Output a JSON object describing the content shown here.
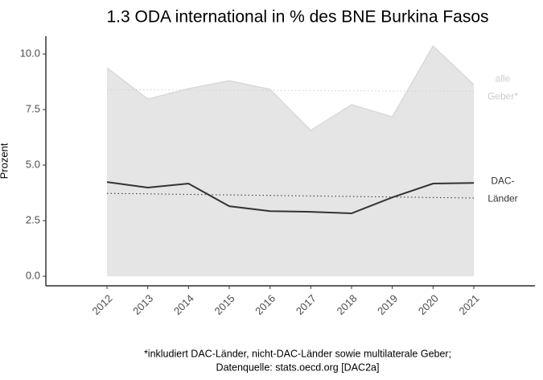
{
  "chart_data": {
    "type": "area_line",
    "title": "1.3 ODA international in % des BNE Burkina Fasos",
    "ylabel": "Prozent",
    "caption": [
      "*inkludiert DAC-Länder, nicht-DAC-Länder sowie multilaterale Geber;",
      "Datenquelle: stats.oecd.org [DAC2a]"
    ],
    "x": [
      2012,
      2013,
      2014,
      2015,
      2016,
      2017,
      2018,
      2019,
      2020,
      2021
    ],
    "xlim": [
      2010.5,
      2022.5
    ],
    "xticks": [
      2012,
      2013,
      2014,
      2015,
      2016,
      2017,
      2018,
      2019,
      2020,
      2021
    ],
    "ylim": [
      -0.43,
      10.8
    ],
    "yticks": [
      {
        "value": 0,
        "label": "0.0"
      },
      2.5,
      {
        "value": 5,
        "label": "5.0"
      },
      7.5,
      {
        "value": 10,
        "label": "10.0"
      }
    ],
    "series": [
      {
        "name": "alle Geber*",
        "kind": "area",
        "color": "#e5e5e5",
        "edge": "#d9d9d9",
        "label_color": "#cccccc",
        "values": [
          9.38,
          7.97,
          8.44,
          8.8,
          8.41,
          6.56,
          7.72,
          7.17,
          10.36,
          8.62
        ],
        "trend": [
          8.4,
          8.32
        ]
      },
      {
        "name": "DAC-Länder",
        "kind": "line",
        "color": "#333333",
        "label_color": "#333333",
        "values": [
          4.24,
          3.99,
          4.17,
          3.15,
          2.93,
          2.9,
          2.83,
          3.55,
          4.17,
          4.2
        ],
        "trend": [
          3.73,
          3.52
        ]
      }
    ]
  }
}
